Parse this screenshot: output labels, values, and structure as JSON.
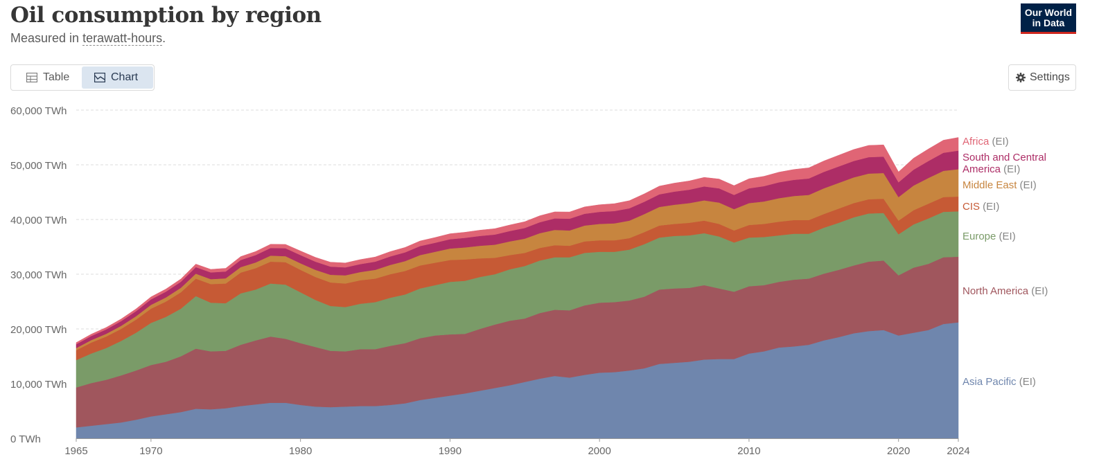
{
  "header": {
    "title": "Oil consumption by region",
    "subtitle_prefix": "Measured in ",
    "subtitle_unit": "terawatt-hours",
    "subtitle_suffix": ".",
    "logo_line1": "Our World",
    "logo_line2": "in Data"
  },
  "tabs": {
    "table_label": "Table",
    "chart_label": "Chart"
  },
  "settings": {
    "label": "Settings"
  },
  "colors": {
    "asia_pacific": "#6f86ad",
    "north_america": "#a0565d",
    "europe": "#7a9b68",
    "cis": "#c65a35",
    "middle_east": "#c7853f",
    "south_central_america": "#ad2d66",
    "africa": "#e06575"
  },
  "chart_data": {
    "type": "area",
    "stacked": true,
    "title": "Oil consumption by region",
    "ylabel": "TWh",
    "ylim": [
      0,
      60000
    ],
    "yticks": [
      0,
      10000,
      20000,
      30000,
      40000,
      50000,
      60000
    ],
    "ytick_labels": [
      "0 TWh",
      "10,000 TWh",
      "20,000 TWh",
      "30,000 TWh",
      "40,000 TWh",
      "50,000 TWh",
      "60,000 TWh"
    ],
    "xlim": [
      1965,
      2024
    ],
    "xticks": [
      1965,
      1970,
      1980,
      1990,
      2000,
      2010,
      2020,
      2024
    ],
    "grid": true,
    "x": [
      1965,
      1966,
      1967,
      1968,
      1969,
      1970,
      1971,
      1972,
      1973,
      1974,
      1975,
      1976,
      1977,
      1978,
      1979,
      1980,
      1981,
      1982,
      1983,
      1984,
      1985,
      1986,
      1987,
      1988,
      1989,
      1990,
      1991,
      1992,
      1993,
      1994,
      1995,
      1996,
      1997,
      1998,
      1999,
      2000,
      2001,
      2002,
      2003,
      2004,
      2005,
      2006,
      2007,
      2008,
      2009,
      2010,
      2011,
      2012,
      2013,
      2014,
      2015,
      2016,
      2017,
      2018,
      2019,
      2020,
      2021,
      2022,
      2023,
      2024
    ],
    "series": [
      {
        "name": "Asia Pacific",
        "suffix": "(EI)",
        "color_key": "asia_pacific",
        "values": [
          2000,
          2300,
          2600,
          2900,
          3400,
          4000,
          4400,
          4800,
          5400,
          5300,
          5500,
          5900,
          6200,
          6500,
          6500,
          6100,
          5800,
          5700,
          5800,
          5900,
          5900,
          6100,
          6400,
          7000,
          7400,
          7800,
          8200,
          8700,
          9200,
          9700,
          10300,
          10900,
          11400,
          11100,
          11600,
          12000,
          12100,
          12400,
          12800,
          13600,
          13800,
          14000,
          14400,
          14500,
          14500,
          15500,
          15900,
          16600,
          16800,
          17100,
          17900,
          18500,
          19200,
          19600,
          19800,
          18800,
          19300,
          19800,
          20900,
          21200
        ]
      },
      {
        "name": "North America",
        "suffix": "(EI)",
        "color_key": "north_america",
        "values": [
          7300,
          7800,
          8100,
          8600,
          9000,
          9400,
          9600,
          10200,
          11000,
          10600,
          10500,
          11200,
          11700,
          12100,
          11700,
          11300,
          10900,
          10300,
          10100,
          10400,
          10400,
          10800,
          11000,
          11300,
          11400,
          11200,
          10900,
          11300,
          11600,
          11800,
          11600,
          12000,
          12100,
          12300,
          12700,
          12800,
          12800,
          12800,
          13100,
          13600,
          13600,
          13500,
          13600,
          12900,
          12300,
          12300,
          12100,
          12000,
          12200,
          12100,
          12200,
          12300,
          12400,
          12700,
          12700,
          11000,
          11900,
          12100,
          12200,
          12000
        ]
      },
      {
        "name": "Europe",
        "suffix": "(EI)",
        "color_key": "europe",
        "values": [
          5000,
          5400,
          5800,
          6300,
          6900,
          7700,
          8200,
          8700,
          9600,
          8900,
          8700,
          9400,
          9300,
          9700,
          9900,
          9300,
          8600,
          8200,
          8100,
          8300,
          8600,
          8800,
          8900,
          9100,
          9200,
          9600,
          9700,
          9500,
          9200,
          9400,
          9600,
          9600,
          9600,
          9700,
          9600,
          9300,
          9200,
          9300,
          9600,
          9500,
          9600,
          9600,
          9500,
          9500,
          9000,
          8900,
          8800,
          8500,
          8400,
          8200,
          8400,
          8600,
          8800,
          8800,
          8700,
          7500,
          7900,
          8300,
          8300,
          8300
        ]
      },
      {
        "name": "CIS",
        "suffix": "(EI)",
        "color_key": "cis",
        "values": [
          1800,
          2000,
          2100,
          2200,
          2400,
          2600,
          2800,
          3000,
          3200,
          3400,
          3600,
          3800,
          3900,
          4000,
          4100,
          4100,
          4200,
          4300,
          4300,
          4300,
          4300,
          4300,
          4300,
          4200,
          4100,
          4000,
          3900,
          3400,
          3000,
          2600,
          2400,
          2300,
          2200,
          2100,
          2100,
          2100,
          2100,
          2100,
          2200,
          2200,
          2200,
          2300,
          2300,
          2300,
          2200,
          2300,
          2400,
          2500,
          2500,
          2500,
          2500,
          2600,
          2600,
          2600,
          2600,
          2500,
          2600,
          2700,
          2700,
          2700
        ]
      },
      {
        "name": "Middle East",
        "suffix": "(EI)",
        "color_key": "middle_east",
        "values": [
          400,
          450,
          500,
          560,
          620,
          700,
          760,
          820,
          900,
          900,
          950,
          1000,
          1050,
          1100,
          1100,
          1200,
          1300,
          1400,
          1500,
          1500,
          1600,
          1700,
          1800,
          1900,
          2000,
          2100,
          2200,
          2300,
          2400,
          2500,
          2600,
          2700,
          2800,
          2800,
          2900,
          3000,
          3100,
          3200,
          3300,
          3400,
          3500,
          3600,
          3700,
          3900,
          3900,
          4000,
          4100,
          4300,
          4400,
          4600,
          4700,
          4700,
          4700,
          4700,
          4700,
          4300,
          4500,
          4700,
          4800,
          5000
        ]
      },
      {
        "name": "South and Central America",
        "suffix": "(EI)",
        "color_key": "south_central_america",
        "values": [
          700,
          750,
          800,
          860,
          920,
          1000,
          1050,
          1100,
          1200,
          1230,
          1250,
          1300,
          1350,
          1400,
          1450,
          1500,
          1500,
          1500,
          1450,
          1450,
          1500,
          1550,
          1600,
          1650,
          1650,
          1700,
          1750,
          1800,
          1850,
          1900,
          1950,
          2000,
          2100,
          2150,
          2150,
          2200,
          2250,
          2250,
          2250,
          2300,
          2400,
          2450,
          2550,
          2600,
          2600,
          2700,
          2800,
          2900,
          2950,
          3000,
          3000,
          3000,
          3000,
          3000,
          3000,
          2700,
          2900,
          3100,
          3300,
          3400
        ]
      },
      {
        "name": "Africa",
        "suffix": "(EI)",
        "color_key": "africa",
        "values": [
          300,
          330,
          360,
          390,
          420,
          450,
          480,
          510,
          550,
          560,
          580,
          620,
          650,
          680,
          700,
          750,
          780,
          800,
          810,
          830,
          850,
          880,
          900,
          930,
          960,
          1000,
          1020,
          1050,
          1080,
          1100,
          1150,
          1180,
          1200,
          1230,
          1260,
          1300,
          1350,
          1400,
          1450,
          1500,
          1550,
          1600,
          1650,
          1700,
          1700,
          1750,
          1800,
          1850,
          1900,
          1950,
          2000,
          2050,
          2100,
          2150,
          2150,
          1900,
          2100,
          2200,
          2300,
          2400
        ]
      }
    ],
    "legend_placement": "right"
  }
}
